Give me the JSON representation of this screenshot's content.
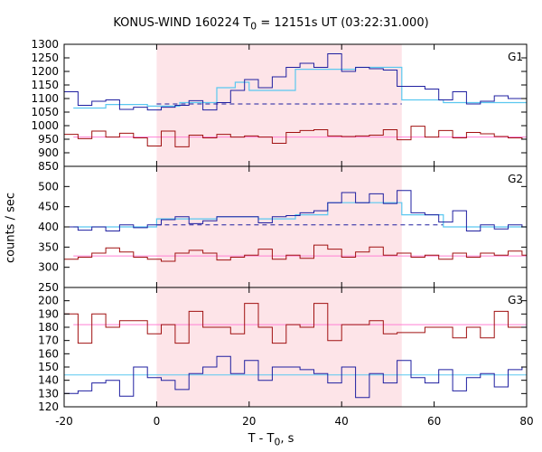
{
  "chart_data": {
    "type": "line",
    "title": {
      "main": "KONUS-WIND 160224 T",
      "sub": "0",
      "rest": " = 12151s UT (03:22:31.000)"
    },
    "ylabel": "counts / sec",
    "xlabel": {
      "main": "T - T",
      "sub": "0",
      "rest": ", s"
    },
    "xlim": [
      -20,
      80
    ],
    "xticks": [
      -20,
      0,
      20,
      40,
      60,
      80
    ],
    "shaded_interval": [
      0,
      53
    ],
    "colors": {
      "blue": "#1f1fa0",
      "red": "#a01010",
      "cyan": "#5ac8f0",
      "pink": "#ff7fd4",
      "shade": "#fde4e8"
    },
    "panels": [
      {
        "label": "G1",
        "ylim": [
          850,
          1300
        ],
        "yticks": [
          850,
          900,
          950,
          1000,
          1050,
          1100,
          1150,
          1200,
          1250,
          1300
        ],
        "x_edges": [
          -20,
          -17,
          -14,
          -11,
          -8,
          -5,
          -2,
          1,
          4,
          7,
          10,
          13,
          16,
          19,
          22,
          25,
          28,
          31,
          34,
          37,
          40,
          43,
          46,
          49,
          52,
          55,
          58,
          61,
          64,
          67,
          70,
          73,
          76,
          79,
          80
        ],
        "hard": [
          1125,
          1075,
          1090,
          1095,
          1060,
          1068,
          1058,
          1068,
          1075,
          1092,
          1058,
          1085,
          1130,
          1170,
          1140,
          1180,
          1215,
          1230,
          1215,
          1265,
          1200,
          1215,
          1210,
          1205,
          1145,
          1145,
          1135,
          1095,
          1125,
          1080,
          1090,
          1110,
          1100,
          1100
        ],
        "hard_fit": {
          "x": [
            -18,
            -11,
            -11,
            -2,
            -2,
            5,
            5,
            13,
            13,
            17,
            17,
            20,
            20,
            30,
            30,
            43,
            43,
            53,
            53,
            62,
            62,
            80
          ],
          "y": [
            1065,
            1065,
            1078,
            1078,
            1072,
            1072,
            1085,
            1085,
            1140,
            1140,
            1160,
            1160,
            1130,
            1130,
            1208,
            1208,
            1215,
            1215,
            1095,
            1095,
            1085,
            1085
          ]
        },
        "hard_background": {
          "level": 1080,
          "dashed_from": 0,
          "dashed_to": 53
        },
        "soft": [
          968,
          952,
          980,
          958,
          972,
          955,
          925,
          980,
          922,
          965,
          955,
          968,
          958,
          962,
          958,
          935,
          975,
          982,
          985,
          962,
          960,
          962,
          965,
          985,
          948,
          998,
          958,
          982,
          955,
          975,
          970,
          960,
          955,
          950
        ],
        "soft_background": 958
      },
      {
        "label": "G2",
        "ylim": [
          250,
          550
        ],
        "yticks": [
          250,
          300,
          350,
          400,
          450,
          500
        ],
        "x_edges": [
          -20,
          -17,
          -14,
          -11,
          -8,
          -5,
          -2,
          1,
          4,
          7,
          10,
          13,
          16,
          19,
          22,
          25,
          28,
          31,
          34,
          37,
          40,
          43,
          46,
          49,
          52,
          55,
          58,
          61,
          64,
          67,
          70,
          73,
          76,
          79,
          80
        ],
        "hard": [
          400,
          392,
          400,
          390,
          405,
          398,
          405,
          418,
          425,
          408,
          415,
          425,
          425,
          425,
          410,
          425,
          428,
          435,
          440,
          460,
          485,
          460,
          482,
          458,
          490,
          435,
          430,
          412,
          440,
          390,
          405,
          395,
          405,
          400
        ],
        "hard_fit": {
          "x": [
            -18,
            0,
            0,
            13,
            13,
            22,
            22,
            30,
            30,
            37,
            37,
            53,
            53,
            62,
            62,
            80
          ],
          "y": [
            400,
            400,
            420,
            420,
            425,
            425,
            420,
            420,
            430,
            430,
            460,
            460,
            430,
            430,
            400,
            400
          ]
        },
        "hard_background": {
          "level": 405,
          "dashed_from": 0,
          "dashed_to": 62
        },
        "soft": [
          320,
          325,
          335,
          348,
          338,
          325,
          320,
          315,
          335,
          342,
          335,
          318,
          325,
          330,
          345,
          320,
          330,
          322,
          355,
          345,
          325,
          338,
          350,
          330,
          335,
          325,
          330,
          320,
          335,
          325,
          335,
          330,
          340,
          330
        ],
        "soft_background": 328
      },
      {
        "label": "G3",
        "ylim": [
          120,
          210
        ],
        "yticks": [
          120,
          130,
          140,
          150,
          160,
          170,
          180,
          190,
          200
        ],
        "x_edges": [
          -20,
          -17,
          -14,
          -11,
          -8,
          -5,
          -2,
          1,
          4,
          7,
          10,
          13,
          16,
          19,
          22,
          25,
          28,
          31,
          34,
          37,
          40,
          43,
          46,
          49,
          52,
          55,
          58,
          61,
          64,
          67,
          70,
          73,
          76,
          79,
          80
        ],
        "soft": [
          190,
          168,
          190,
          180,
          185,
          185,
          175,
          182,
          168,
          192,
          180,
          180,
          175,
          198,
          180,
          168,
          182,
          180,
          198,
          170,
          182,
          182,
          185,
          175,
          176,
          176,
          180,
          180,
          172,
          180,
          172,
          192,
          180,
          180
        ],
        "soft_background": 182,
        "hard": [
          130,
          132,
          138,
          140,
          128,
          150,
          142,
          140,
          133,
          145,
          150,
          158,
          145,
          155,
          140,
          150,
          150,
          148,
          145,
          138,
          150,
          127,
          145,
          138,
          155,
          142,
          138,
          148,
          132,
          142,
          145,
          135,
          148,
          150
        ],
        "hard_background": 144
      }
    ]
  }
}
